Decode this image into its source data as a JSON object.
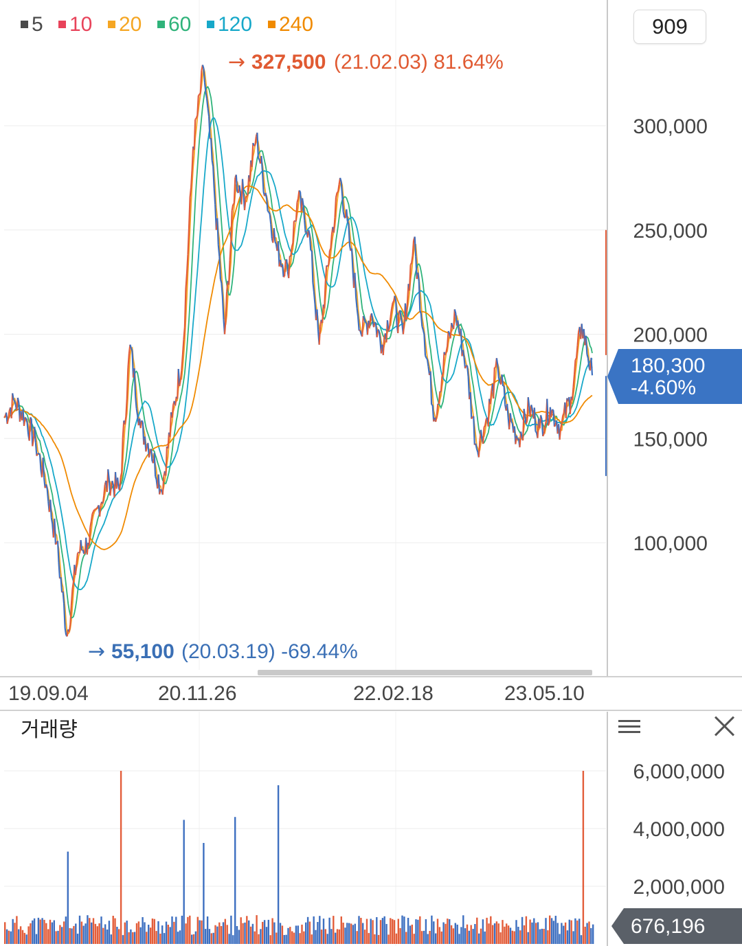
{
  "legend": [
    {
      "label": "5",
      "color": "#4a4a4a"
    },
    {
      "label": "10",
      "color": "#e8435a"
    },
    {
      "label": "20",
      "color": "#f5a623"
    },
    {
      "label": "60",
      "color": "#2fb37a"
    },
    {
      "label": "120",
      "color": "#17a8c9"
    },
    {
      "label": "240",
      "color": "#f08a00"
    }
  ],
  "period_value": "909",
  "annotations": {
    "high": {
      "price": "327,500",
      "date": "(21.02.03)",
      "change": "81.64%",
      "color": "#e05a32"
    },
    "low": {
      "price": "55,100",
      "date": "(20.03.19)",
      "change": "-69.44%",
      "color": "#3a6fb5"
    }
  },
  "current": {
    "price": "180,300",
    "change": "-4.60%",
    "color": "#3a74c4"
  },
  "volume_panel": {
    "title": "거래량",
    "current": "676,196"
  },
  "chart_data": [
    {
      "type": "line",
      "x_ticks": [
        "19.09.04",
        "20.11.26",
        "22.02.18",
        "23.05.10"
      ],
      "y_ticks": [
        "300,000",
        "250,000",
        "200,000",
        "150,000",
        "100,000"
      ],
      "ylim": [
        48000,
        328000
      ],
      "price_series": [
        {
          "date": "19.09.04",
          "value": 160000
        },
        {
          "date": "19.10",
          "value": 168000
        },
        {
          "date": "19.11",
          "value": 160000
        },
        {
          "date": "19.12",
          "value": 148000
        },
        {
          "date": "20.01",
          "value": 128000
        },
        {
          "date": "20.02",
          "value": 100000
        },
        {
          "date": "20.03.19",
          "value": 55100
        },
        {
          "date": "20.04",
          "value": 95000
        },
        {
          "date": "20.05",
          "value": 100000
        },
        {
          "date": "20.06",
          "value": 118000
        },
        {
          "date": "20.07",
          "value": 130000
        },
        {
          "date": "20.08",
          "value": 125000
        },
        {
          "date": "20.08b",
          "value": 195000
        },
        {
          "date": "20.09",
          "value": 155000
        },
        {
          "date": "20.10",
          "value": 145000
        },
        {
          "date": "20.11.26",
          "value": 125000
        },
        {
          "date": "20.12",
          "value": 160000
        },
        {
          "date": "21.01",
          "value": 190000
        },
        {
          "date": "21.01b",
          "value": 290000
        },
        {
          "date": "21.02.03",
          "value": 327500
        },
        {
          "date": "21.03",
          "value": 270000
        },
        {
          "date": "21.04",
          "value": 200000
        },
        {
          "date": "21.05",
          "value": 275000
        },
        {
          "date": "21.06",
          "value": 265000
        },
        {
          "date": "21.07",
          "value": 295000
        },
        {
          "date": "21.08",
          "value": 265000
        },
        {
          "date": "21.09",
          "value": 240000
        },
        {
          "date": "21.10",
          "value": 230000
        },
        {
          "date": "21.11",
          "value": 265000
        },
        {
          "date": "21.12",
          "value": 250000
        },
        {
          "date": "22.01",
          "value": 195000
        },
        {
          "date": "22.02.18",
          "value": 240000
        },
        {
          "date": "22.02b",
          "value": 275000
        },
        {
          "date": "22.03",
          "value": 240000
        },
        {
          "date": "22.04",
          "value": 200000
        },
        {
          "date": "22.05",
          "value": 210000
        },
        {
          "date": "22.06",
          "value": 195000
        },
        {
          "date": "22.07",
          "value": 215000
        },
        {
          "date": "22.08",
          "value": 200000
        },
        {
          "date": "22.09",
          "value": 245000
        },
        {
          "date": "22.10",
          "value": 200000
        },
        {
          "date": "22.11",
          "value": 160000
        },
        {
          "date": "22.12",
          "value": 190000
        },
        {
          "date": "23.01",
          "value": 210000
        },
        {
          "date": "23.02",
          "value": 185000
        },
        {
          "date": "23.03",
          "value": 145000
        },
        {
          "date": "23.04",
          "value": 160000
        },
        {
          "date": "23.05.10",
          "value": 185000
        },
        {
          "date": "23.06",
          "value": 160000
        },
        {
          "date": "23.07",
          "value": 150000
        },
        {
          "date": "23.08",
          "value": 165000
        },
        {
          "date": "23.09",
          "value": 155000
        },
        {
          "date": "23.10",
          "value": 165000
        },
        {
          "date": "23.11",
          "value": 155000
        },
        {
          "date": "23.12",
          "value": 170000
        },
        {
          "date": "24.01",
          "value": 205000
        },
        {
          "date": "24.02",
          "value": 180300
        }
      ]
    },
    {
      "type": "bar",
      "title": "거래량",
      "y_ticks": [
        "6,000,000",
        "4,000,000",
        "2,000,000"
      ],
      "ylim": [
        0,
        7000000
      ],
      "spikes": [
        {
          "date": "20.03",
          "value": 3200000
        },
        {
          "date": "20.08",
          "value": 6000000
        },
        {
          "date": "21.01",
          "value": 4300000
        },
        {
          "date": "21.02",
          "value": 3500000
        },
        {
          "date": "21.05",
          "value": 4400000
        },
        {
          "date": "21.09",
          "value": 5500000
        },
        {
          "date": "24.01",
          "value": 6000000
        },
        {
          "date": "24.02",
          "value": 676196
        }
      ]
    }
  ]
}
